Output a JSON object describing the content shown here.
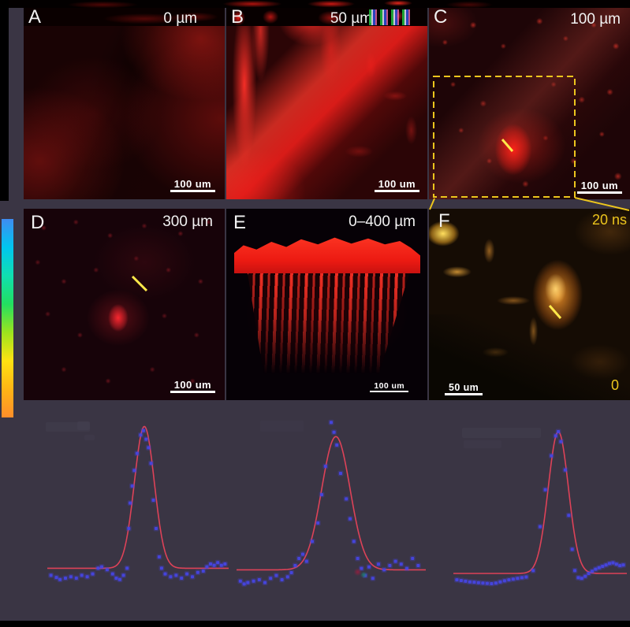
{
  "figure": {
    "panels": [
      {
        "label": "A",
        "depth": "0 µm",
        "scalebar": "100 um"
      },
      {
        "label": "B",
        "depth": "50 µm",
        "scalebar": "100 um"
      },
      {
        "label": "C",
        "depth": "100 µm",
        "scalebar": "100 um"
      },
      {
        "label": "D",
        "depth": "300 µm",
        "scalebar": "100 um"
      },
      {
        "label": "E",
        "depth": "0–400 µm",
        "scalebar": "100 um"
      },
      {
        "label": "F",
        "scalebar": "50 um"
      }
    ],
    "colorbar": {
      "max_label": "20 ns",
      "min_label": "0",
      "colors": [
        "#3f8cf0",
        "#00c6f0",
        "#10dfb0",
        "#22e060",
        "#9ce41e",
        "#ffe212",
        "#ffb515",
        "#ff8e2a"
      ]
    },
    "annotation_color": "#ecc51d",
    "marker_color": "#ffe94a"
  },
  "chart_style": {
    "point_color": "#4645e2",
    "fit_color": "#dd4258"
  },
  "chart_data": [
    {
      "type": "scatter",
      "title": "",
      "xlabel": "",
      "ylabel": "",
      "description": "Intensity line profile across a vessel with Gaussian fit (no axes shown)",
      "x_range": [
        0,
        1
      ],
      "y_range": [
        -0.1,
        1.1
      ],
      "fit": {
        "type": "gaussian",
        "center": 0.535,
        "sigma": 0.055,
        "amplitude": 1.0,
        "baseline": 0.02
      },
      "points": [
        [
          0.02,
          -0.03
        ],
        [
          0.05,
          -0.045
        ],
        [
          0.07,
          -0.06
        ],
        [
          0.1,
          -0.05
        ],
        [
          0.13,
          -0.04
        ],
        [
          0.16,
          -0.05
        ],
        [
          0.19,
          -0.03
        ],
        [
          0.22,
          -0.04
        ],
        [
          0.25,
          -0.02
        ],
        [
          0.28,
          0.02
        ],
        [
          0.3,
          0.03
        ],
        [
          0.33,
          0.01
        ],
        [
          0.36,
          -0.02
        ],
        [
          0.38,
          -0.05
        ],
        [
          0.4,
          -0.06
        ],
        [
          0.42,
          -0.03
        ],
        [
          0.44,
          0.02
        ],
        [
          0.449,
          0.3
        ],
        [
          0.457,
          0.48
        ],
        [
          0.468,
          0.6
        ],
        [
          0.48,
          0.71
        ],
        [
          0.495,
          0.83
        ],
        [
          0.515,
          0.96
        ],
        [
          0.53,
          0.99
        ],
        [
          0.545,
          0.93
        ],
        [
          0.558,
          0.87
        ],
        [
          0.572,
          0.76
        ],
        [
          0.585,
          0.5
        ],
        [
          0.6,
          0.3
        ],
        [
          0.617,
          0.1
        ],
        [
          0.63,
          0.02
        ],
        [
          0.65,
          -0.02
        ],
        [
          0.68,
          -0.04
        ],
        [
          0.71,
          -0.03
        ],
        [
          0.74,
          -0.05
        ],
        [
          0.77,
          -0.02
        ],
        [
          0.8,
          -0.04
        ],
        [
          0.83,
          -0.01
        ],
        [
          0.86,
          0.0
        ],
        [
          0.88,
          0.03
        ],
        [
          0.9,
          0.05
        ],
        [
          0.92,
          0.04
        ],
        [
          0.94,
          0.06
        ],
        [
          0.96,
          0.04
        ],
        [
          0.98,
          0.05
        ]
      ]
    },
    {
      "type": "scatter",
      "title": "",
      "xlabel": "",
      "ylabel": "",
      "description": "Intensity line profile across a vessel with Gaussian fit (no axes shown)",
      "x_range": [
        0,
        1
      ],
      "y_range": [
        -0.1,
        1.1
      ],
      "fit": {
        "type": "gaussian",
        "center": 0.525,
        "sigma": 0.075,
        "amplitude": 0.94,
        "baseline": 0.02
      },
      "points": [
        [
          0.02,
          -0.06
        ],
        [
          0.04,
          -0.08
        ],
        [
          0.06,
          -0.07
        ],
        [
          0.09,
          -0.06
        ],
        [
          0.12,
          -0.05
        ],
        [
          0.15,
          -0.07
        ],
        [
          0.18,
          -0.04
        ],
        [
          0.21,
          -0.02
        ],
        [
          0.24,
          -0.05
        ],
        [
          0.27,
          -0.03
        ],
        [
          0.29,
          0.0
        ],
        [
          0.31,
          0.05
        ],
        [
          0.33,
          0.1
        ],
        [
          0.35,
          0.13
        ],
        [
          0.37,
          0.08
        ],
        [
          0.4,
          0.22
        ],
        [
          0.43,
          0.35
        ],
        [
          0.45,
          0.55
        ],
        [
          0.47,
          0.75
        ],
        [
          0.5,
          1.06
        ],
        [
          0.515,
          0.99
        ],
        [
          0.53,
          0.9
        ],
        [
          0.55,
          0.7
        ],
        [
          0.58,
          0.52
        ],
        [
          0.6,
          0.38
        ],
        [
          0.62,
          0.22
        ],
        [
          0.64,
          0.1
        ],
        [
          0.66,
          0.03
        ],
        [
          0.68,
          -0.02
        ],
        [
          0.7,
          0.04
        ],
        [
          0.72,
          -0.04
        ],
        [
          0.75,
          0.06
        ],
        [
          0.78,
          0.02
        ],
        [
          0.81,
          0.05
        ],
        [
          0.84,
          0.08
        ],
        [
          0.87,
          0.06
        ],
        [
          0.9,
          0.03
        ],
        [
          0.93,
          0.1
        ],
        [
          0.96,
          0.05
        ]
      ]
    },
    {
      "type": "scatter",
      "title": "",
      "xlabel": "",
      "ylabel": "",
      "description": "Intensity line profile across a vessel with Gaussian fit (no axes shown)",
      "x_range": [
        0,
        1
      ],
      "y_range": [
        -0.1,
        1.1
      ],
      "fit": {
        "type": "gaussian",
        "center": 0.605,
        "sigma": 0.058,
        "amplitude": 1.0,
        "baseline": 0.0
      },
      "points": [
        [
          0.02,
          -0.045
        ],
        [
          0.045,
          -0.05
        ],
        [
          0.07,
          -0.055
        ],
        [
          0.095,
          -0.06
        ],
        [
          0.12,
          -0.062
        ],
        [
          0.145,
          -0.065
        ],
        [
          0.17,
          -0.068
        ],
        [
          0.195,
          -0.07
        ],
        [
          0.22,
          -0.072
        ],
        [
          0.245,
          -0.068
        ],
        [
          0.27,
          -0.06
        ],
        [
          0.295,
          -0.052
        ],
        [
          0.32,
          -0.045
        ],
        [
          0.345,
          -0.04
        ],
        [
          0.37,
          -0.035
        ],
        [
          0.395,
          -0.03
        ],
        [
          0.42,
          -0.025
        ],
        [
          0.46,
          0.02
        ],
        [
          0.5,
          0.33
        ],
        [
          0.53,
          0.59
        ],
        [
          0.565,
          0.83
        ],
        [
          0.59,
          0.97
        ],
        [
          0.605,
          1.0
        ],
        [
          0.62,
          0.93
        ],
        [
          0.645,
          0.73
        ],
        [
          0.665,
          0.41
        ],
        [
          0.685,
          0.17
        ],
        [
          0.7,
          0.02
        ],
        [
          0.72,
          -0.03
        ],
        [
          0.74,
          -0.035
        ],
        [
          0.76,
          -0.02
        ],
        [
          0.78,
          0.0
        ],
        [
          0.8,
          0.015
        ],
        [
          0.82,
          0.03
        ],
        [
          0.84,
          0.04
        ],
        [
          0.86,
          0.05
        ],
        [
          0.88,
          0.06
        ],
        [
          0.9,
          0.07
        ],
        [
          0.92,
          0.075
        ],
        [
          0.94,
          0.065
        ],
        [
          0.96,
          0.055
        ],
        [
          0.98,
          0.06
        ]
      ]
    }
  ]
}
